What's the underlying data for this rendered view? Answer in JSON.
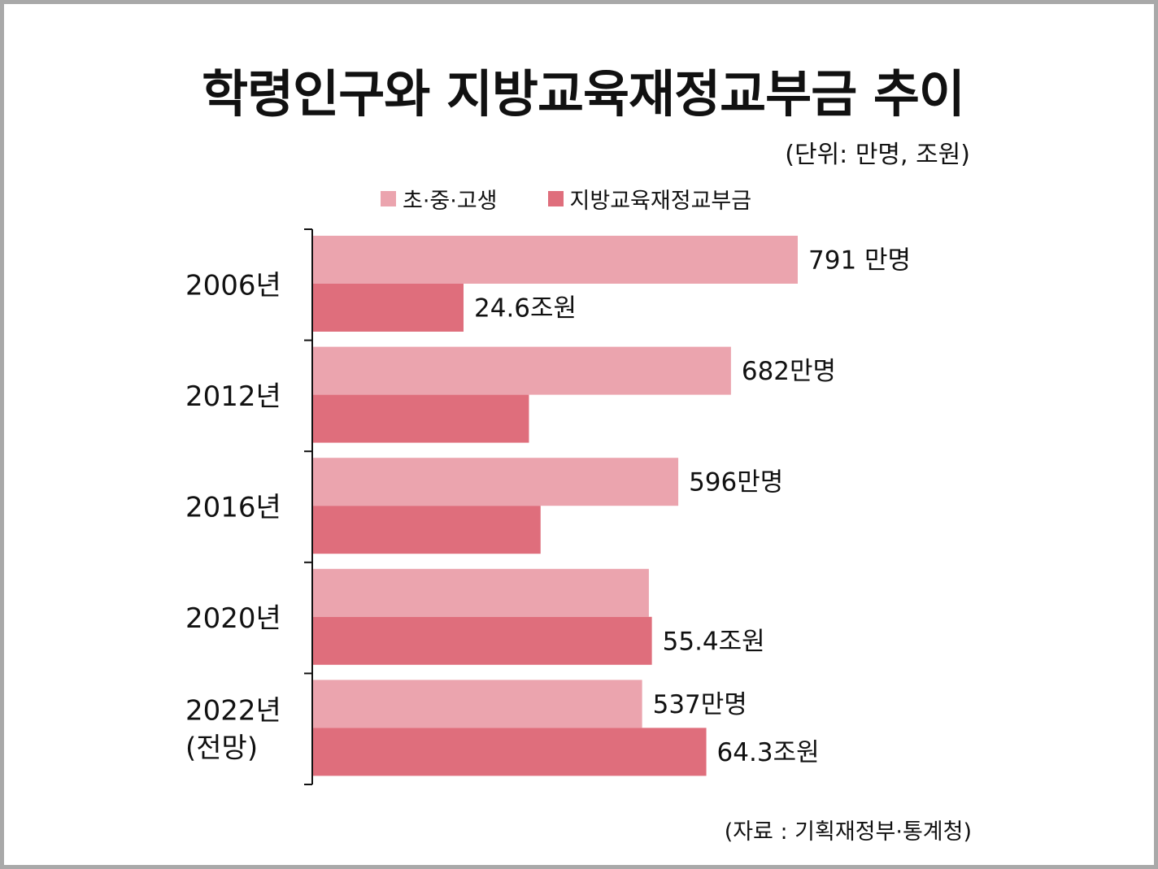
{
  "title": "학령인구와 지방교육재정교부금 추이",
  "unit_note": "(단위: 만명, 조원)",
  "source": "(자료 : 기획재정부·통계청)",
  "colors": {
    "students": "#eba4ae",
    "grants": "#df6e7c",
    "frame": "#a9a9a9",
    "axis": "#111111"
  },
  "chart_data": {
    "type": "bar",
    "orientation": "horizontal",
    "title": "학령인구와 지방교육재정교부금 추이",
    "subtitle": "(단위: 만명, 조원)",
    "categories": [
      [
        "2006년"
      ],
      [
        "2012년"
      ],
      [
        "2016년"
      ],
      [
        "2020년"
      ],
      [
        "2022년",
        "(전망)"
      ]
    ],
    "legend": {
      "position": "top-center"
    },
    "series": [
      {
        "name": "초·중·고생",
        "values": [
          791,
          682,
          596,
          548,
          537
        ],
        "labels": [
          "791 만명",
          "682만명",
          "596만명",
          "",
          "537만명"
        ]
      },
      {
        "name": "지방교육재정교부금",
        "values": [
          24.6,
          35.3,
          37.2,
          55.4,
          64.3
        ],
        "labels": [
          "24.6조원",
          "",
          "",
          "55.4조원",
          "64.3조원"
        ]
      }
    ],
    "grid": false
  }
}
